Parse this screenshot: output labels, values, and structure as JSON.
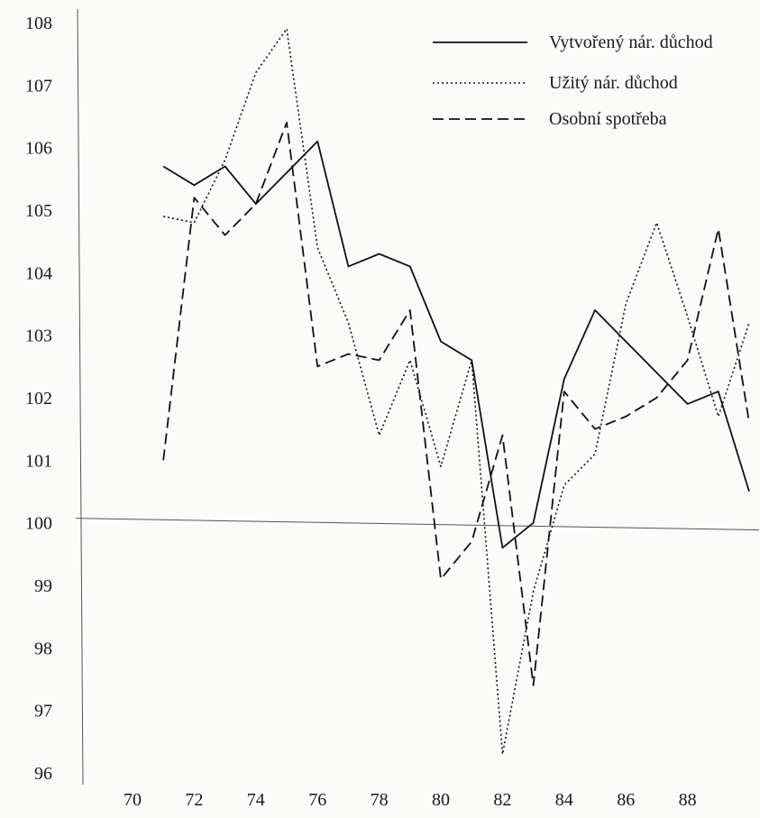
{
  "chart_data": {
    "type": "line",
    "title": "",
    "xlabel": "",
    "ylabel": "",
    "xlim": [
      70,
      90
    ],
    "ylim": [
      96,
      108
    ],
    "x_tick_labels": [
      "70",
      "72",
      "74",
      "76",
      "78",
      "80",
      "82",
      "84",
      "86",
      "88"
    ],
    "y_tick_labels": [
      "96",
      "97",
      "98",
      "99",
      "100",
      "101",
      "102",
      "103",
      "104",
      "105",
      "106",
      "107",
      "108"
    ],
    "reference_line_y": 100,
    "grid": false,
    "legend_position": "top-right",
    "x": [
      71,
      72,
      73,
      74,
      75,
      76,
      77,
      78,
      79,
      80,
      81,
      82,
      83,
      84,
      85,
      86,
      87,
      88,
      89,
      90
    ],
    "series": [
      {
        "name": "Vytvořený nár. důchod",
        "style": "solid",
        "values": [
          105.7,
          105.4,
          105.7,
          105.1,
          null,
          106.1,
          104.1,
          104.3,
          104.1,
          102.9,
          102.6,
          99.6,
          100.0,
          102.3,
          103.4,
          102.9,
          102.4,
          101.9,
          102.1,
          100.5
        ]
      },
      {
        "name": "Užitý nár. důchod",
        "style": "dotted",
        "values": [
          104.9,
          104.8,
          105.8,
          107.2,
          107.9,
          104.4,
          103.2,
          101.4,
          102.6,
          100.9,
          102.6,
          96.3,
          98.9,
          100.6,
          101.1,
          103.5,
          104.8,
          103.3,
          101.7,
          103.2
        ]
      },
      {
        "name": "Osobní spotřeba",
        "style": "dashed",
        "values": [
          101.0,
          105.2,
          104.6,
          105.1,
          106.4,
          102.5,
          102.7,
          102.6,
          103.4,
          99.1,
          99.7,
          101.4,
          97.4,
          102.1,
          101.5,
          101.7,
          102.0,
          102.6,
          104.7,
          101.6
        ]
      }
    ]
  }
}
